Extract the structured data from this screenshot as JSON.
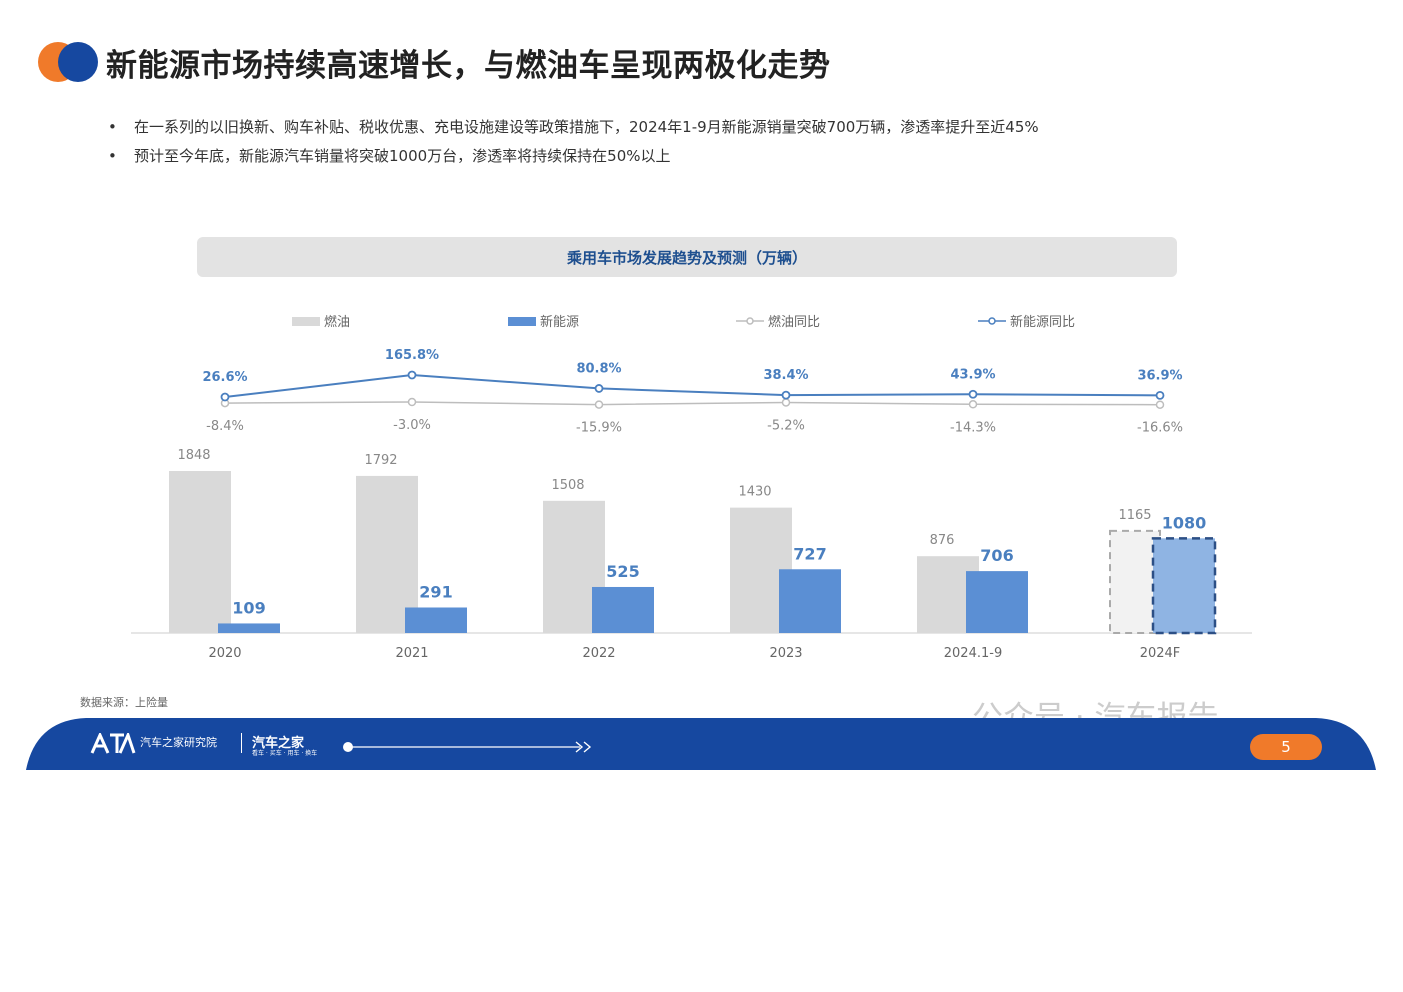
{
  "header": {
    "title": "新能源市场持续高速增长，与燃油车呈现两极化走势",
    "bullets": [
      "在一系列的以旧换新、购车补贴、税收优惠、充电设施建设等政策措施下，2024年1-9月新能源销量突破700万辆，渗透率提升至近45%",
      "预计至今年底，新能源汽车销量将突破1000万台，渗透率将持续保持在50%以上"
    ],
    "bullet_marker": "•"
  },
  "colors": {
    "fuel_bar": "#d9d9d9",
    "nev_bar": "#5b8fd4",
    "nev_line": "#4a7fbf",
    "fuel_line": "#bdbdbd",
    "title_blue": "#1e4f8f",
    "footer_blue": "#1648a0",
    "accent_orange": "#f07a2a"
  },
  "chart_data": {
    "type": "bar",
    "title": "乘用车市场发展趋势及预测（万辆）",
    "categories": [
      "2020",
      "2021",
      "2022",
      "2023",
      "2024.1-9",
      "2024F"
    ],
    "series": [
      {
        "name": "燃油",
        "values": [
          1848,
          1792,
          1508,
          1430,
          876,
          1165
        ]
      },
      {
        "name": "新能源",
        "values": [
          109,
          291,
          525,
          727,
          706,
          1080
        ]
      }
    ],
    "line_series": [
      {
        "name": "燃油同比",
        "values": [
          -8.4,
          -3.0,
          -15.9,
          -5.2,
          -14.3,
          -16.6
        ],
        "labels": [
          "-8.4%",
          "-3.0%",
          "-15.9%",
          "-5.2%",
          "-14.3%",
          "-16.6%"
        ]
      },
      {
        "name": "新能源同比",
        "values": [
          26.6,
          165.8,
          80.8,
          38.4,
          43.9,
          36.9
        ],
        "labels": [
          "26.6%",
          "165.8%",
          "80.8%",
          "38.4%",
          "43.9%",
          "36.9%"
        ]
      }
    ],
    "forecast_category": "2024F",
    "legend_position": "top",
    "grid": false
  },
  "source": "数据来源：上险量",
  "watermark": "公众号 · 汽车报告",
  "footer": {
    "brand1": "汽车之家研究院",
    "brand2": "汽车之家",
    "brand2_sub": "看车 · 买车 · 用车 · 换车",
    "page_number": "5"
  }
}
